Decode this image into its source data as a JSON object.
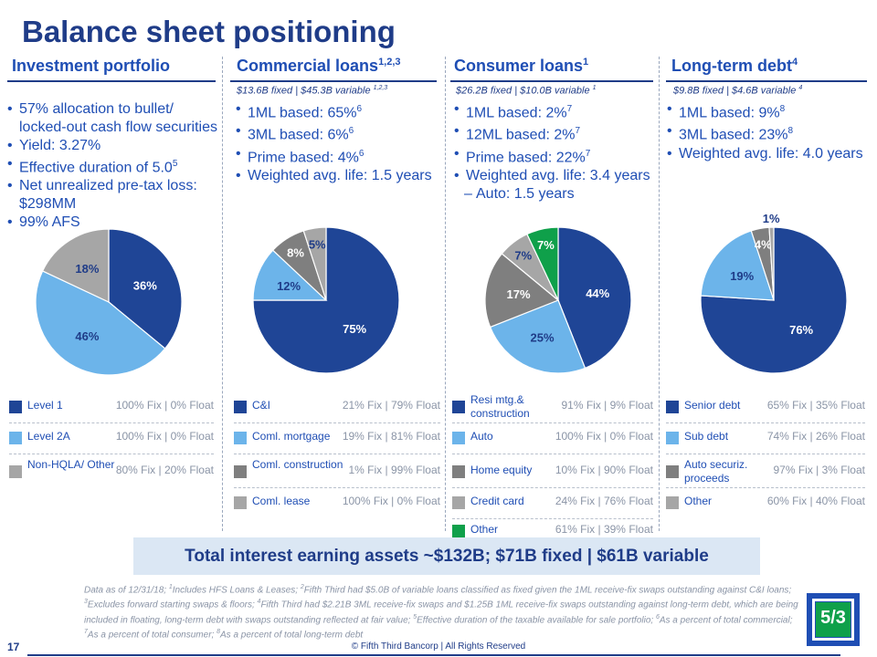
{
  "title": "Balance sheet positioning",
  "columns": [
    {
      "heading": "Investment portfolio",
      "heading_sup": "",
      "subheading": "",
      "subheading_sup": "",
      "bullets": [
        {
          "text": "57% allocation to bullet/ locked-out cash flow securities",
          "sup": ""
        },
        {
          "text": "Yield: 3.27%",
          "sup": ""
        },
        {
          "text": "Effective duration of 5.0",
          "sup": "5"
        },
        {
          "text": "Net unrealized pre-tax loss: $298MM",
          "sup": ""
        },
        {
          "text": "99% AFS",
          "sup": ""
        }
      ],
      "pie": [
        {
          "label": "36%",
          "value": 36,
          "color": "#1f4596"
        },
        {
          "label": "46%",
          "value": 46,
          "color": "#6cb4ea"
        },
        {
          "label": "18%",
          "value": 18,
          "color": "#a6a6a6"
        }
      ],
      "legend": [
        {
          "name": "Level 1",
          "stat": "100% Fix | 0% Float",
          "color": "#1f4596"
        },
        {
          "name": "Level 2A",
          "stat": "100% Fix | 0% Float",
          "color": "#6cb4ea"
        },
        {
          "name": "Non-HQLA/ Other",
          "stat": "80% Fix | 20% Float",
          "color": "#a6a6a6"
        }
      ]
    },
    {
      "heading": "Commercial loans",
      "heading_sup": "1,2,3",
      "subheading": "$13.6B fixed | $45.3B variable ",
      "subheading_sup": "1,2,3",
      "bullets": [
        {
          "text": "1ML based: 65%",
          "sup": "6"
        },
        {
          "text": "3ML based: 6%",
          "sup": "6"
        },
        {
          "text": "Prime based: 4%",
          "sup": "6"
        },
        {
          "text": "Weighted avg. life: 1.5 years",
          "sup": ""
        }
      ],
      "pie": [
        {
          "label": "75%",
          "value": 75,
          "color": "#1f4596"
        },
        {
          "label": "12%",
          "value": 12,
          "color": "#6cb4ea"
        },
        {
          "label": "8%",
          "value": 8,
          "color": "#7f7f7f"
        },
        {
          "label": "5%",
          "value": 5,
          "color": "#a6a6a6"
        }
      ],
      "legend": [
        {
          "name": "C&I",
          "stat": "21% Fix | 79% Float",
          "color": "#1f4596"
        },
        {
          "name": "Coml. mortgage",
          "stat": "19% Fix | 81% Float",
          "color": "#6cb4ea"
        },
        {
          "name": "Coml. construction",
          "stat": "1% Fix | 99% Float",
          "color": "#7f7f7f"
        },
        {
          "name": "Coml. lease",
          "stat": "100% Fix | 0% Float",
          "color": "#a6a6a6"
        }
      ]
    },
    {
      "heading": "Consumer loans",
      "heading_sup": "1",
      "subheading": "$26.2B fixed | $10.0B variable ",
      "subheading_sup": "1",
      "bullets": [
        {
          "text": "1ML based: 2%",
          "sup": "7"
        },
        {
          "text": "12ML based: 2%",
          "sup": "7"
        },
        {
          "text": "Prime based: 22%",
          "sup": "7"
        },
        {
          "text": "Weighted avg. life: 3.4 years",
          "sup": ""
        },
        {
          "text": "Auto: 1.5 years",
          "sup": "",
          "sub": true
        }
      ],
      "pie": [
        {
          "label": "44%",
          "value": 44,
          "color": "#1f4596"
        },
        {
          "label": "25%",
          "value": 25,
          "color": "#6cb4ea"
        },
        {
          "label": "17%",
          "value": 17,
          "color": "#7f7f7f"
        },
        {
          "label": "7%",
          "value": 7,
          "color": "#a6a6a6"
        },
        {
          "label": "7%",
          "value": 7,
          "color": "#0fa04a"
        }
      ],
      "legend": [
        {
          "name": "Resi mtg.& construction",
          "stat": "91% Fix | 9% Float",
          "color": "#1f4596"
        },
        {
          "name": "Auto",
          "stat": "100% Fix | 0% Float",
          "color": "#6cb4ea"
        },
        {
          "name": "Home equity",
          "stat": "10% Fix | 90% Float",
          "color": "#7f7f7f"
        },
        {
          "name": "Credit card",
          "stat": "24% Fix | 76% Float",
          "color": "#a6a6a6"
        },
        {
          "name": "Other",
          "stat": "61% Fix | 39% Float",
          "color": "#0fa04a"
        }
      ]
    },
    {
      "heading": "Long-term debt",
      "heading_sup": "4",
      "subheading": "$9.8B fixed | $4.6B variable ",
      "subheading_sup": "4",
      "bullets": [
        {
          "text": "1ML based: 9%",
          "sup": "8"
        },
        {
          "text": "3ML based: 23%",
          "sup": "8"
        },
        {
          "text": "Weighted avg. life: 4.0 years",
          "sup": ""
        }
      ],
      "pie": [
        {
          "label": "76%",
          "value": 76,
          "color": "#1f4596"
        },
        {
          "label": "19%",
          "value": 19,
          "color": "#6cb4ea"
        },
        {
          "label": "4%",
          "value": 4,
          "color": "#7f7f7f"
        },
        {
          "label": "1%",
          "value": 1,
          "color": "#a6a6a6"
        }
      ],
      "legend": [
        {
          "name": "Senior debt",
          "stat": "65% Fix | 35% Float",
          "color": "#1f4596"
        },
        {
          "name": "Sub debt",
          "stat": "74% Fix | 26% Float",
          "color": "#6cb4ea"
        },
        {
          "name": "Auto securiz. proceeds",
          "stat": "97% Fix | 3% Float",
          "color": "#7f7f7f"
        },
        {
          "name": "Other",
          "stat": "60% Fix | 40% Float",
          "color": "#a6a6a6"
        }
      ]
    }
  ],
  "banner": "Total interest earning assets ~$132B; $71B fixed | $61B variable",
  "footnote": [
    {
      "t": "Data as of 12/31/18; "
    },
    {
      "s": "1"
    },
    {
      "t": "Includes HFS Loans & Leases; "
    },
    {
      "s": "2"
    },
    {
      "t": "Fifth Third had $5.0B of variable loans classified as fixed given the 1ML receive-fix swaps outstanding against C&I loans; "
    },
    {
      "s": "3"
    },
    {
      "t": "Excludes forward starting swaps & floors;  "
    },
    {
      "s": "4"
    },
    {
      "t": "Fifth Third had $2.21B 3ML receive-fix swaps and $1.25B 1ML receive-fix swaps outstanding against long-term debt, which are being included in floating, long-term debt with swaps outstanding reflected at fair value; "
    },
    {
      "s": "5"
    },
    {
      "t": "Effective duration of the taxable available for sale portfolio; "
    },
    {
      "s": "6"
    },
    {
      "t": "As a percent of total commercial; "
    },
    {
      "s": "7"
    },
    {
      "t": "As a percent of total consumer; "
    },
    {
      "s": "8"
    },
    {
      "t": "As a percent of total long-term debt"
    }
  ],
  "page_number": "17",
  "copyright": "© Fifth Third Bancorp | All Rights Reserved",
  "logo_text": "5/3"
}
